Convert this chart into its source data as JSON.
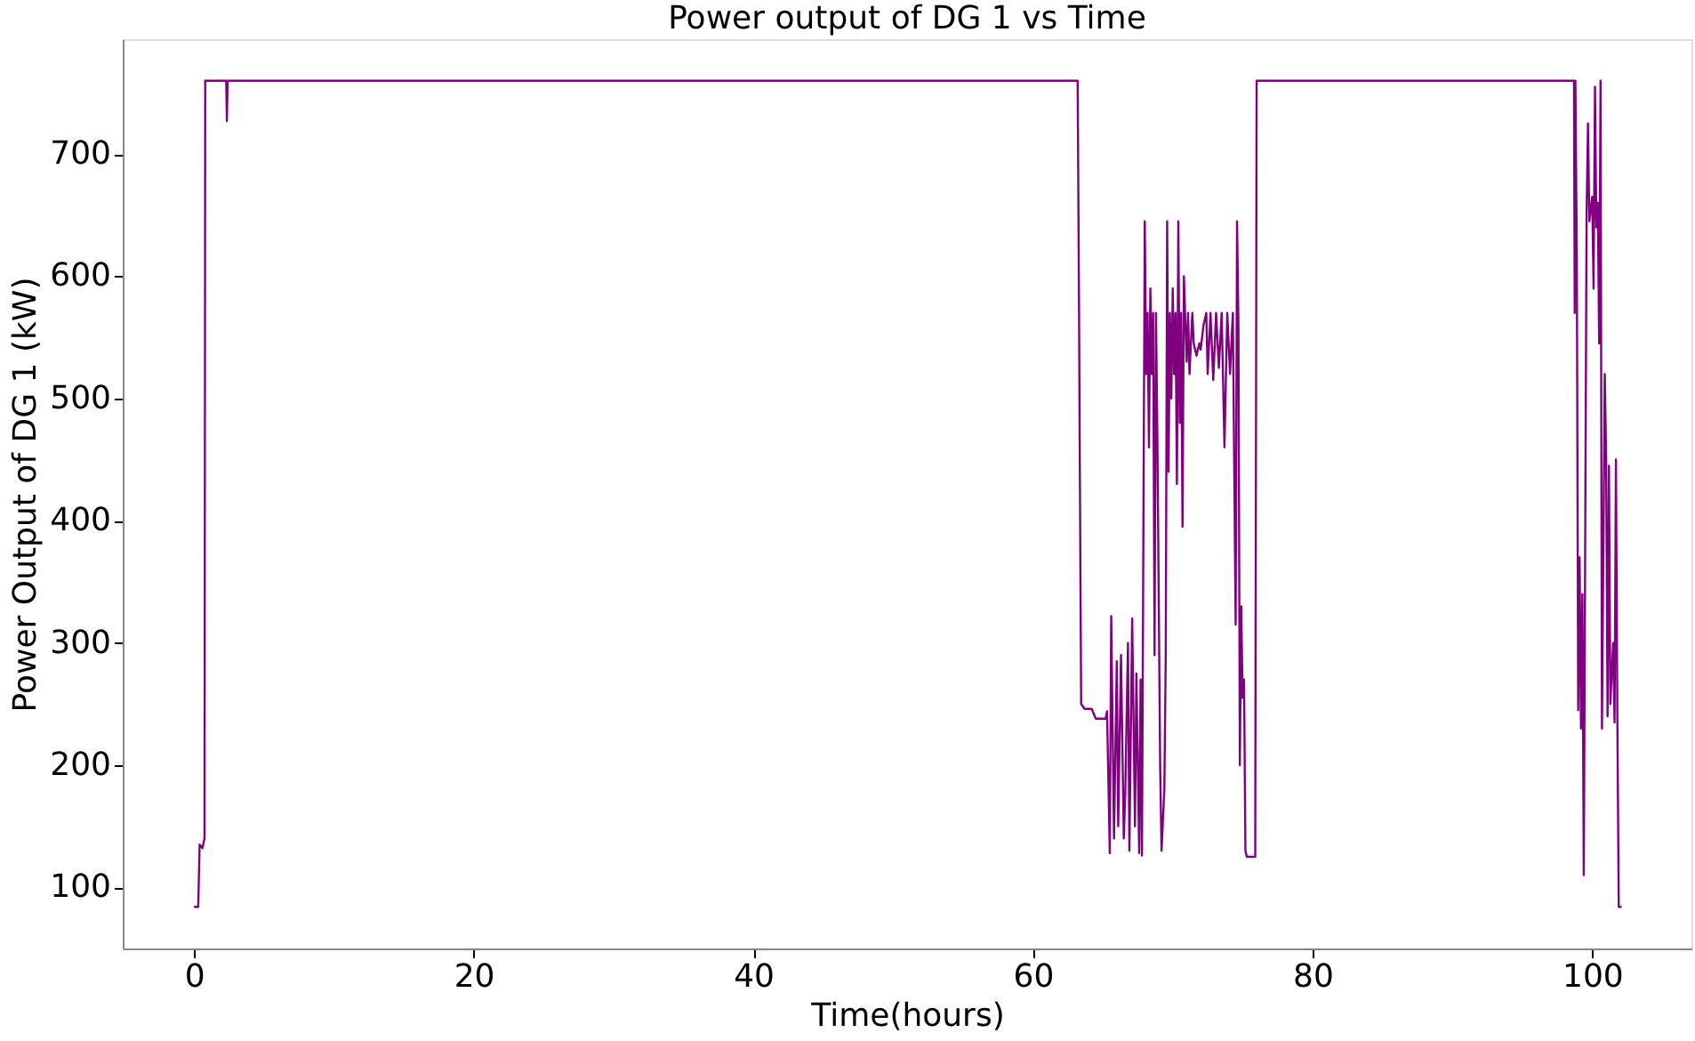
{
  "chart_data": {
    "type": "line",
    "title": "Power output of DG 1 vs Time",
    "xlabel": "Time(hours)",
    "ylabel": "Power Output of DG 1 (kW)",
    "xlim": [
      -5.1,
      107.1
    ],
    "ylim": [
      50,
      794
    ],
    "xticks": [
      0,
      20,
      40,
      60,
      80,
      100
    ],
    "yticks": [
      100,
      200,
      300,
      400,
      500,
      600,
      700
    ],
    "grid": false,
    "marker": "none",
    "line_style": "solid",
    "series": [
      {
        "color": "#800080",
        "x": [
          0,
          0.3,
          0.4,
          0.6,
          0.75,
          0.8,
          2.3,
          2.35,
          2.4,
          63.2,
          63.3,
          63.35,
          63.45,
          63.7,
          64.2,
          64.5,
          65.2,
          65.3,
          65.5,
          65.6,
          65.8,
          66.0,
          66.1,
          66.3,
          66.5,
          66.6,
          66.8,
          66.9,
          67.1,
          67.3,
          67.4,
          67.6,
          67.7,
          67.8,
          68.0,
          68.1,
          68.2,
          68.3,
          68.4,
          68.5,
          68.6,
          68.7,
          68.8,
          68.9,
          69.1,
          69.2,
          69.4,
          69.5,
          69.6,
          69.7,
          69.8,
          69.9,
          70.0,
          70.1,
          70.2,
          70.3,
          70.4,
          70.5,
          70.6,
          70.7,
          70.8,
          71.0,
          71.1,
          71.2,
          71.4,
          71.5,
          71.7,
          71.9,
          72.0,
          72.2,
          72.4,
          72.5,
          72.7,
          72.9,
          73.1,
          73.3,
          73.5,
          73.7,
          73.9,
          74.1,
          74.3,
          74.5,
          74.6,
          74.7,
          74.8,
          74.9,
          75.0,
          75.1,
          75.2,
          75.3,
          75.9,
          76.0,
          98.7,
          98.75,
          98.8,
          98.9,
          99.0,
          99.1,
          99.2,
          99.3,
          99.4,
          99.6,
          99.7,
          99.8,
          100.0,
          100.1,
          100.2,
          100.3,
          100.4,
          100.5,
          100.6,
          100.7,
          100.9,
          101.0,
          101.1,
          101.2,
          101.3,
          101.5,
          101.6,
          101.7,
          101.8,
          101.9,
          102.1
        ],
        "values": [
          84,
          84,
          135,
          132,
          140,
          760,
          760,
          727,
          760,
          760,
          570,
          455,
          250,
          246,
          246,
          238,
          238,
          244,
          128,
          322,
          140,
          285,
          150,
          290,
          140,
          175,
          300,
          130,
          320,
          150,
          275,
          128,
          270,
          126,
          645,
          520,
          570,
          460,
          590,
          520,
          570,
          290,
          570,
          470,
          200,
          130,
          180,
          290,
          645,
          440,
          570,
          500,
          590,
          520,
          570,
          430,
          645,
          480,
          570,
          395,
          600,
          530,
          570,
          520,
          570,
          545,
          535,
          545,
          540,
          560,
          570,
          520,
          570,
          515,
          570,
          525,
          570,
          460,
          570,
          520,
          570,
          315,
          645,
          560,
          200,
          330,
          255,
          270,
          130,
          125,
          125,
          760,
          760,
          570,
          760,
          620,
          245,
          370,
          230,
          340,
          110,
          650,
          725,
          645,
          665,
          590,
          755,
          640,
          660,
          545,
          760,
          230,
          520,
          450,
          240,
          445,
          250,
          300,
          235,
          450,
          240,
          84,
          84
        ]
      }
    ]
  }
}
